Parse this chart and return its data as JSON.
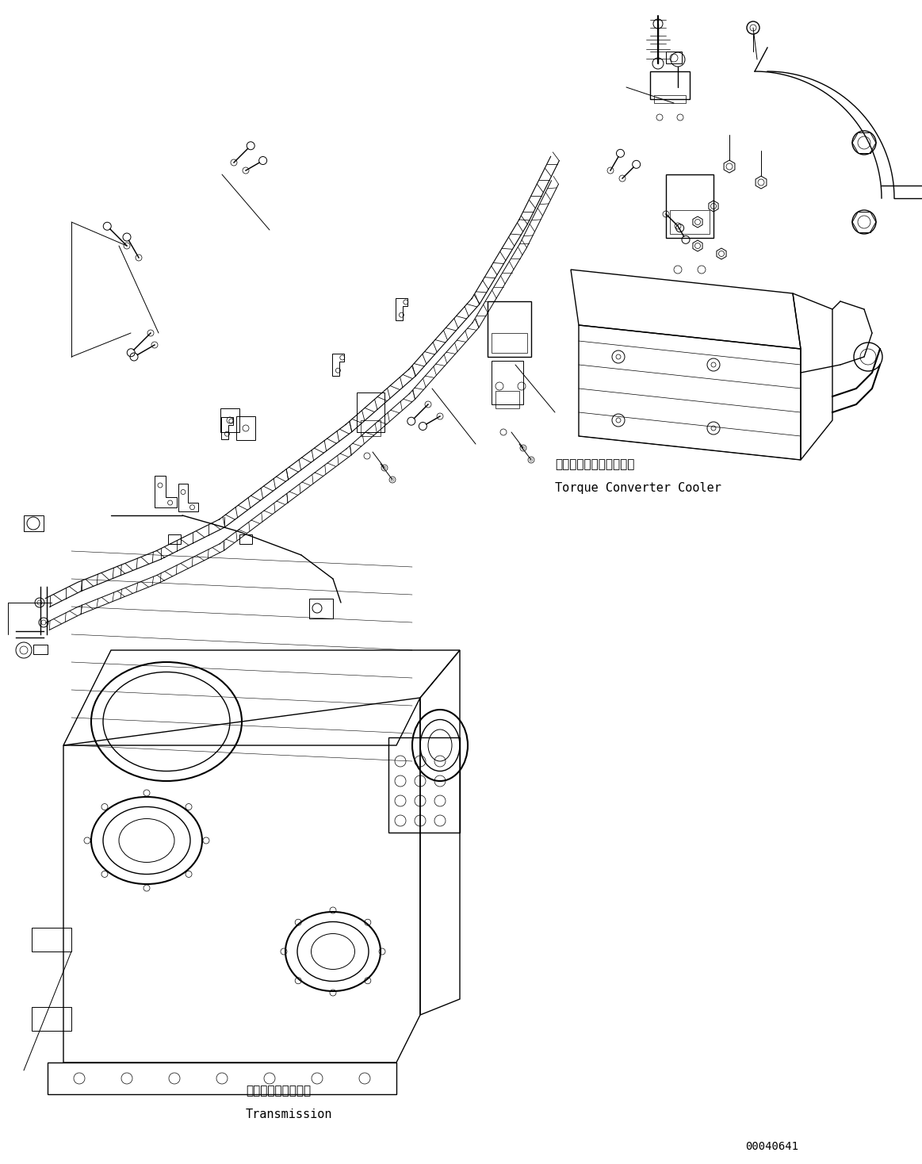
{
  "background_color": "#ffffff",
  "line_color": "#000000",
  "figure_width": 11.63,
  "figure_height": 14.68,
  "dpi": 100,
  "label_torque_converter_ja": "トルクコンバータクーラ",
  "label_torque_converter_en": "Torque Converter Cooler",
  "label_transmission_ja": "トランスミッション",
  "label_transmission_en": "Transmission",
  "part_number": "00040641",
  "font_size_label": 11,
  "font_size_part": 10
}
